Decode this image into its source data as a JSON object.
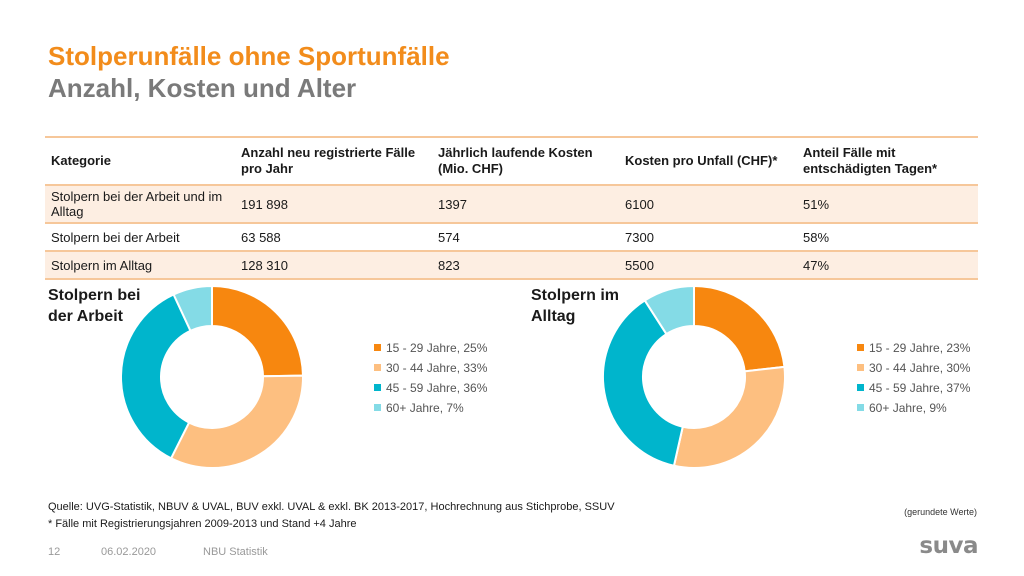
{
  "header": {
    "title": "Stolperunfälle ohne Sportunfälle",
    "subtitle": "Anzahl, Kosten und Alter"
  },
  "table": {
    "headers": [
      "Kategorie",
      "Anzahl neu registrierte Fälle pro Jahr",
      "Jährlich laufende Kosten (Mio. CHF)",
      "Kosten pro Unfall (CHF)*",
      "Anteil Fälle mit entschädigten Tagen*"
    ],
    "rows": [
      [
        "Stolpern bei der Arbeit und im Alltag",
        "191 898",
        "1397",
        "6100",
        "51%"
      ],
      [
        "Stolpern bei der Arbeit",
        "63 588",
        "574",
        "7300",
        "58%"
      ],
      [
        "Stolpern im Alltag",
        "128 310",
        "823",
        "5500",
        "47%"
      ]
    ]
  },
  "colors": [
    "#f7870f",
    "#fdbf80",
    "#00b5cc",
    "#84dbe6"
  ],
  "chart_data": [
    {
      "type": "pie",
      "title": "Stolpern bei der Arbeit",
      "categories": [
        "15 - 29 Jahre",
        "30 - 44 Jahre",
        "45 - 59 Jahre",
        "60+ Jahre"
      ],
      "values": [
        25,
        33,
        36,
        7
      ],
      "legend_labels": [
        "15 - 29 Jahre, 25%",
        "30 - 44 Jahre, 33%",
        "45 - 59 Jahre, 36%",
        "60+ Jahre, 7%"
      ],
      "legend": "right"
    },
    {
      "type": "pie",
      "title": "Stolpern im Alltag",
      "categories": [
        "15 - 29 Jahre",
        "30 - 44 Jahre",
        "45 - 59 Jahre",
        "60+ Jahre"
      ],
      "values": [
        23,
        30,
        37,
        9
      ],
      "legend_labels": [
        "15 - 29 Jahre, 23%",
        "30 - 44 Jahre, 30%",
        "45 - 59 Jahre, 37%",
        "60+ Jahre, 9%"
      ],
      "legend": "right"
    }
  ],
  "notes": {
    "source": "Quelle: UVG-Statistik, NBUV & UVAL, BUV exkl. UVAL & exkl. BK 2013-2017, Hochrechnung aus Stichprobe, SSUV",
    "footnote": "* Fälle mit Registrierungsjahren 2009-2013 und Stand +4 Jahre",
    "rounded": "(gerundete Werte)"
  },
  "footer": {
    "page": "12",
    "date": "06.02.2020",
    "label": "NBU Statistik",
    "logo": "suva"
  }
}
